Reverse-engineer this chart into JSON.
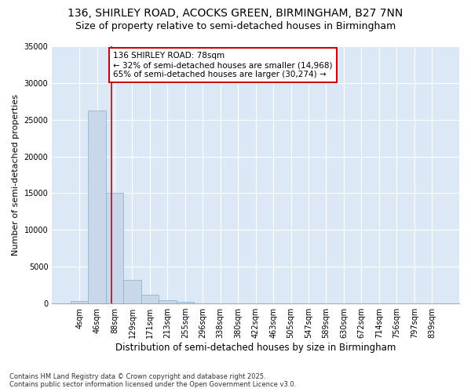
{
  "title_line1": "136, SHIRLEY ROAD, ACOCKS GREEN, BIRMINGHAM, B27 7NN",
  "title_line2": "Size of property relative to semi-detached houses in Birmingham",
  "xlabel": "Distribution of semi-detached houses by size in Birmingham",
  "ylabel": "Number of semi-detached properties",
  "categories": [
    "4sqm",
    "46sqm",
    "88sqm",
    "129sqm",
    "171sqm",
    "213sqm",
    "255sqm",
    "296sqm",
    "338sqm",
    "380sqm",
    "422sqm",
    "463sqm",
    "505sqm",
    "547sqm",
    "589sqm",
    "630sqm",
    "672sqm",
    "714sqm",
    "756sqm",
    "797sqm",
    "839sqm"
  ],
  "values": [
    350,
    26200,
    15100,
    3200,
    1200,
    450,
    250,
    0,
    0,
    0,
    0,
    0,
    0,
    0,
    0,
    0,
    0,
    0,
    0,
    0,
    0
  ],
  "bar_color": "#c8d8ea",
  "bar_edge_color": "#89aec8",
  "vline_color": "#cc0000",
  "annotation_title": "136 SHIRLEY ROAD: 78sqm",
  "annotation_line2": "← 32% of semi-detached houses are smaller (14,968)",
  "annotation_line3": "65% of semi-detached houses are larger (30,274) →",
  "annotation_box_color": "#cc0000",
  "ylim": [
    0,
    35000
  ],
  "yticks": [
    0,
    5000,
    10000,
    15000,
    20000,
    25000,
    30000,
    35000
  ],
  "background_color": "#ffffff",
  "plot_background_color": "#dce8f5",
  "grid_color": "#ffffff",
  "footer_line1": "Contains HM Land Registry data © Crown copyright and database right 2025.",
  "footer_line2": "Contains public sector information licensed under the Open Government Licence v3.0.",
  "title_fontsize": 10,
  "subtitle_fontsize": 9,
  "tick_fontsize": 7,
  "ylabel_fontsize": 8,
  "xlabel_fontsize": 8.5,
  "annotation_fontsize": 7.5,
  "footer_fontsize": 6
}
